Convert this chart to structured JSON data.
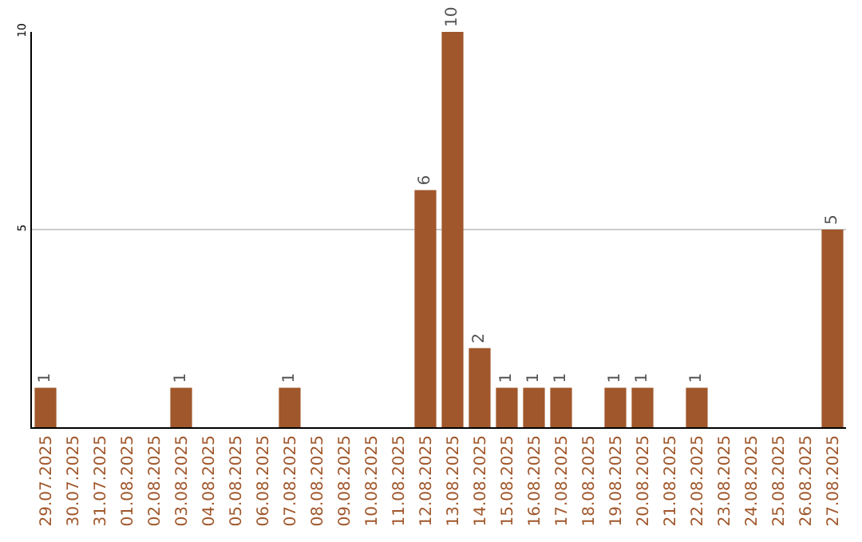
{
  "chart_data": {
    "type": "bar",
    "categories": [
      "29.07.2025",
      "30.07.2025",
      "31.07.2025",
      "01.08.2025",
      "02.08.2025",
      "03.08.2025",
      "04.08.2025",
      "05.08.2025",
      "06.08.2025",
      "07.08.2025",
      "08.08.2025",
      "09.08.2025",
      "10.08.2025",
      "11.08.2025",
      "12.08.2025",
      "13.08.2025",
      "14.08.2025",
      "15.08.2025",
      "16.08.2025",
      "17.08.2025",
      "18.08.2025",
      "19.08.2025",
      "20.08.2025",
      "21.08.2025",
      "22.08.2025",
      "23.08.2025",
      "24.08.2025",
      "25.08.2025",
      "26.08.2025",
      "27.08.2025"
    ],
    "values": [
      1,
      0,
      0,
      0,
      0,
      1,
      0,
      0,
      0,
      1,
      0,
      0,
      0,
      0,
      6,
      10,
      2,
      1,
      1,
      1,
      0,
      1,
      1,
      0,
      1,
      0,
      0,
      0,
      0,
      5
    ],
    "value_labels": [
      "1",
      null,
      null,
      null,
      null,
      "1",
      null,
      null,
      null,
      "1",
      null,
      null,
      null,
      null,
      "6",
      "10",
      "2",
      "1",
      "1",
      "1",
      null,
      "1",
      "1",
      null,
      "1",
      null,
      null,
      null,
      null,
      "5"
    ],
    "color": "#a0572b",
    "ylim": [
      0,
      10
    ],
    "yticks": [
      5,
      10
    ],
    "grid": "y"
  }
}
